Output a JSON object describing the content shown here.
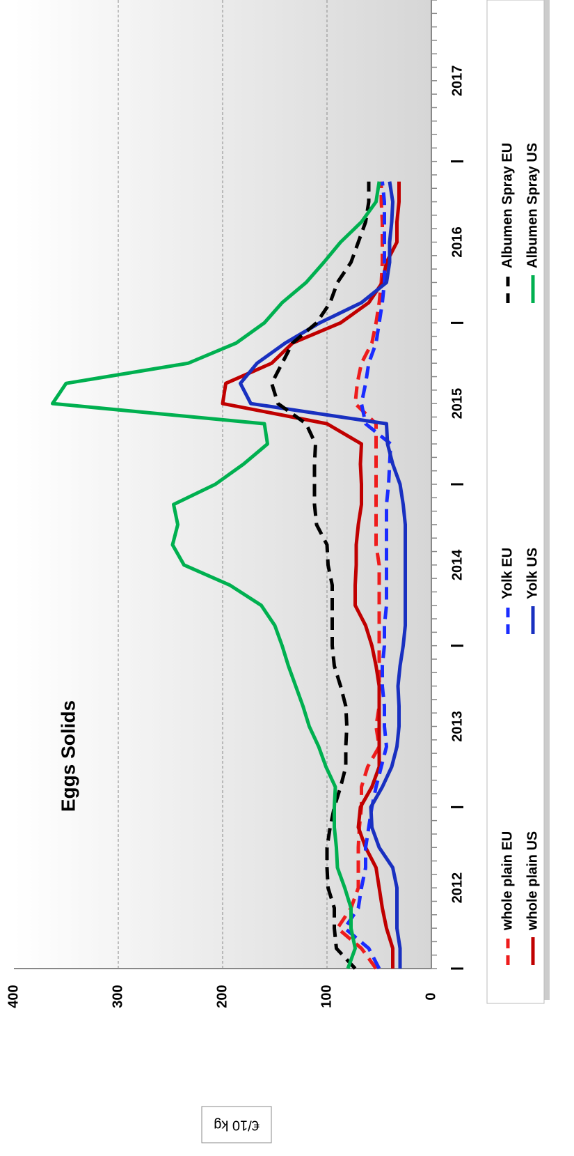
{
  "chart_data": {
    "type": "line",
    "title": "Eggs Solids",
    "ylabel": "€/10 kg",
    "x": [
      2012,
      2012.125,
      2012.25,
      2012.375,
      2012.5,
      2012.625,
      2012.75,
      2012.875,
      2013,
      2013.125,
      2013.25,
      2013.375,
      2013.5,
      2013.625,
      2013.75,
      2013.875,
      2014,
      2014.125,
      2014.25,
      2014.375,
      2014.5,
      2014.625,
      2014.75,
      2014.875,
      2015,
      2015.125,
      2015.25,
      2015.375,
      2015.5,
      2015.625,
      2015.75,
      2015.875,
      2016,
      2016.125,
      2016.25,
      2016.375,
      2016.5,
      2016.625,
      2016.75,
      2016.875
    ],
    "xlim": [
      2012,
      2018
    ],
    "xticks": [
      {
        "value": 2012.5,
        "label": "2012"
      },
      {
        "value": 2013.5,
        "label": "2013"
      },
      {
        "value": 2014.5,
        "label": "2014"
      },
      {
        "value": 2015.5,
        "label": "2015"
      },
      {
        "value": 2016.5,
        "label": "2016"
      },
      {
        "value": 2017.5,
        "label": "2017"
      }
    ],
    "ylim": [
      0,
      400
    ],
    "yticks": [
      0,
      100,
      200,
      300,
      400
    ],
    "grid": true,
    "series": [
      {
        "name": "whole plain EU",
        "color": "#ee1c1c",
        "dashed": true,
        "values": [
          53,
          67,
          90,
          77,
          70,
          70,
          70,
          69,
          67,
          67,
          61,
          50,
          53,
          50,
          50,
          50,
          50,
          50,
          50,
          50,
          50,
          53,
          53,
          53,
          53,
          53,
          53,
          53,
          73,
          71,
          67,
          57,
          53,
          50,
          48,
          47,
          47,
          47,
          48,
          48
        ]
      },
      {
        "name": "whole plain US",
        "color": "#c00000",
        "dashed": false,
        "values": [
          37,
          37,
          43,
          47,
          50,
          53,
          63,
          70,
          68,
          57,
          50,
          50,
          50,
          50,
          50,
          53,
          57,
          63,
          73,
          73,
          72,
          72,
          70,
          67,
          67,
          68,
          67,
          100,
          200,
          197,
          153,
          133,
          87,
          60,
          47,
          43,
          33,
          33,
          31,
          31
        ]
      },
      {
        "name": "Yolk EU",
        "color": "#1a2cff",
        "dashed": true,
        "values": [
          50,
          60,
          83,
          70,
          67,
          63,
          63,
          60,
          57,
          53,
          48,
          43,
          45,
          45,
          47,
          47,
          45,
          45,
          43,
          43,
          43,
          43,
          43,
          43,
          41,
          40,
          39,
          63,
          67,
          63,
          60,
          53,
          50,
          47,
          45,
          45,
          45,
          45,
          45,
          47
        ]
      },
      {
        "name": "Yolk US",
        "color": "#1930c0",
        "dashed": false,
        "values": [
          30,
          30,
          33,
          33,
          33,
          37,
          50,
          57,
          58,
          47,
          38,
          33,
          31,
          31,
          32,
          30,
          27,
          25,
          25,
          25,
          25,
          25,
          25,
          27,
          30,
          37,
          42,
          43,
          173,
          183,
          167,
          140,
          107,
          67,
          43,
          40,
          40,
          38,
          37,
          40
        ]
      },
      {
        "name": "Albumen Spray EU",
        "color": "#000000",
        "dashed": true,
        "values": [
          73,
          91,
          93,
          93,
          99,
          100,
          100,
          97,
          93,
          87,
          82,
          82,
          81,
          82,
          87,
          93,
          95,
          95,
          95,
          95,
          99,
          100,
          110,
          112,
          112,
          112,
          111,
          120,
          147,
          153,
          143,
          133,
          110,
          97,
          90,
          77,
          70,
          63,
          60,
          60
        ]
      },
      {
        "name": "Albumen Spray US",
        "color": "#00b050",
        "dashed": false,
        "values": [
          80,
          73,
          77,
          77,
          83,
          90,
          91,
          93,
          93,
          92,
          101,
          108,
          117,
          123,
          130,
          137,
          143,
          150,
          163,
          193,
          237,
          248,
          243,
          247,
          207,
          180,
          157,
          160,
          363,
          350,
          233,
          187,
          160,
          143,
          120,
          103,
          87,
          67,
          53,
          50
        ]
      }
    ]
  }
}
